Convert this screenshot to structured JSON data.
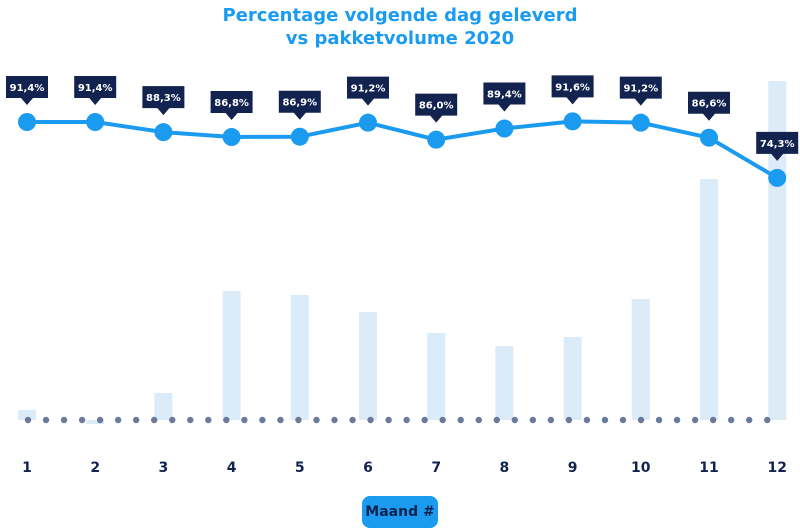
{
  "chart_data": {
    "type": "line",
    "title_line1": "Percentage volgende dag geleverd",
    "title_line2": "vs pakketvolume 2020",
    "xlabel": "Maand #",
    "categories": [
      "1",
      "2",
      "3",
      "4",
      "5",
      "6",
      "7",
      "8",
      "9",
      "10",
      "11",
      "12"
    ],
    "series": [
      {
        "type": "line",
        "values": [
          91.4,
          91.4,
          88.3,
          86.8,
          86.9,
          91.2,
          86.0,
          89.4,
          91.6,
          91.2,
          86.6,
          74.3
        ],
        "labels": [
          "91,4%",
          "91,4%",
          "88,3%",
          "86,8%",
          "86,9%",
          "91,2%",
          "86,0%",
          "89,4%",
          "91,6%",
          "91,2%",
          "86,6%",
          "74,3%"
        ]
      },
      {
        "type": "bar",
        "note_unit": "relative",
        "values": [
          10,
          -4,
          27,
          129,
          125,
          108,
          87,
          74,
          83,
          121,
          241,
          339
        ]
      }
    ],
    "grid": false,
    "colors": {
      "line": "#1a9bf0",
      "bar": "#dcebf8",
      "label_bg": "#13234f",
      "baseline_dots": "#6b7a99",
      "text": "#13234f"
    }
  }
}
